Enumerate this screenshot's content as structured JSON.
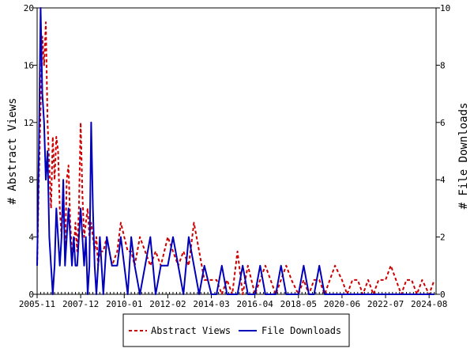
{
  "chart_data": {
    "type": "line",
    "title": "",
    "xlabel": "",
    "y_left_label": "# Abstract Views",
    "y_right_label": "# File Downloads",
    "x_ticks": [
      "2005-11",
      "2007-12",
      "2010-01",
      "2012-02",
      "2014-03",
      "2016-04",
      "2018-05",
      "2020-06",
      "2022-07",
      "2024-08"
    ],
    "x_range": [
      "2005-11",
      "2024-12"
    ],
    "y_left_ticks": [
      "0",
      "4",
      "8",
      "12",
      "16",
      "20"
    ],
    "y_left_range": [
      0,
      20
    ],
    "y_right_ticks": [
      "0",
      "2",
      "4",
      "6",
      "8",
      "10"
    ],
    "y_right_range": [
      0,
      10
    ],
    "grid": false,
    "legend_position": "bottom-center",
    "series": [
      {
        "name": "Abstract Views",
        "axis": "left",
        "color": "#cc0000",
        "style": "dashed",
        "x": [
          "2005-11",
          "2005-12",
          "2006-01",
          "2006-02",
          "2006-03",
          "2006-04",
          "2006-05",
          "2006-06",
          "2006-07",
          "2006-08",
          "2006-09",
          "2006-10",
          "2006-11",
          "2006-12",
          "2007-01",
          "2007-02",
          "2007-03",
          "2007-04",
          "2007-05",
          "2007-06",
          "2007-07",
          "2007-08",
          "2007-09",
          "2007-10",
          "2007-11",
          "2007-12",
          "2008-01",
          "2008-02",
          "2008-03",
          "2008-04",
          "2008-05",
          "2008-06",
          "2008-07",
          "2008-08",
          "2008-09",
          "2008-10",
          "2008-11",
          "2008-12",
          "2009-01",
          "2009-03",
          "2009-06",
          "2009-09",
          "2009-11",
          "2010-01",
          "2010-03",
          "2010-05",
          "2010-07",
          "2010-10",
          "2011-01",
          "2011-04",
          "2011-07",
          "2011-10",
          "2012-02",
          "2012-05",
          "2012-08",
          "2012-11",
          "2013-02",
          "2013-05",
          "2013-08",
          "2013-11",
          "2014-03",
          "2014-06",
          "2014-09",
          "2014-12",
          "2015-03",
          "2015-06",
          "2015-09",
          "2015-12",
          "2016-04",
          "2016-07",
          "2016-10",
          "2017-01",
          "2017-04",
          "2017-07",
          "2017-10",
          "2018-01",
          "2018-05",
          "2018-08",
          "2018-11",
          "2019-02",
          "2019-05",
          "2019-08",
          "2019-11",
          "2020-02",
          "2020-06",
          "2020-09",
          "2020-12",
          "2021-03",
          "2021-06",
          "2021-09",
          "2021-12",
          "2022-03",
          "2022-07",
          "2022-10",
          "2023-01",
          "2023-04",
          "2023-07",
          "2023-10",
          "2024-01",
          "2024-04",
          "2024-08",
          "2024-11"
        ],
        "values": [
          2,
          8,
          13,
          18,
          16,
          19,
          12,
          9,
          6,
          11,
          8,
          11,
          10,
          6,
          4,
          7,
          3,
          8,
          9,
          5,
          3,
          3,
          5,
          3,
          6,
          12,
          7,
          4,
          5,
          6,
          4,
          5,
          4,
          3,
          4,
          2,
          3,
          3,
          3,
          4,
          2,
          3,
          5,
          4,
          3,
          3,
          2,
          4,
          3,
          2,
          3,
          2,
          4,
          3,
          2,
          3,
          2,
          5,
          3,
          1,
          1,
          1,
          0,
          1,
          0,
          3,
          0,
          2,
          0,
          1,
          2,
          1,
          0,
          1,
          2,
          1,
          0,
          1,
          0,
          1,
          1,
          0,
          1,
          2,
          1,
          0,
          1,
          1,
          0,
          1,
          0,
          1,
          1,
          2,
          1,
          0,
          1,
          1,
          0,
          1,
          0,
          1
        ]
      },
      {
        "name": "File Downloads",
        "axis": "right",
        "color": "#0000bb",
        "style": "solid",
        "x": [
          "2005-11",
          "2005-12",
          "2006-01",
          "2006-02",
          "2006-03",
          "2006-04",
          "2006-05",
          "2006-06",
          "2006-07",
          "2006-08",
          "2006-09",
          "2006-10",
          "2006-11",
          "2006-12",
          "2007-01",
          "2007-02",
          "2007-03",
          "2007-04",
          "2007-05",
          "2007-06",
          "2007-07",
          "2007-08",
          "2007-09",
          "2007-10",
          "2007-11",
          "2007-12",
          "2008-01",
          "2008-02",
          "2008-03",
          "2008-04",
          "2008-05",
          "2008-06",
          "2008-07",
          "2008-08",
          "2008-09",
          "2008-10",
          "2008-11",
          "2008-12",
          "2009-01",
          "2009-03",
          "2009-06",
          "2009-09",
          "2009-11",
          "2010-01",
          "2010-03",
          "2010-05",
          "2010-07",
          "2010-10",
          "2011-01",
          "2011-04",
          "2011-07",
          "2011-10",
          "2012-02",
          "2012-05",
          "2012-08",
          "2012-11",
          "2013-02",
          "2013-05",
          "2013-08",
          "2013-11",
          "2014-03",
          "2014-06",
          "2014-09",
          "2014-12",
          "2015-03",
          "2015-06",
          "2015-09",
          "2015-12",
          "2016-04",
          "2016-07",
          "2016-10",
          "2017-01",
          "2017-04",
          "2017-07",
          "2017-10",
          "2018-01",
          "2018-05",
          "2018-08",
          "2018-11",
          "2019-02",
          "2019-05",
          "2019-08",
          "2019-11",
          "2020-02",
          "2020-06",
          "2020-09",
          "2020-12",
          "2021-03",
          "2021-06",
          "2021-09",
          "2021-12",
          "2022-03",
          "2022-07",
          "2022-10",
          "2023-01",
          "2023-04",
          "2023-07",
          "2023-10",
          "2024-01",
          "2024-04",
          "2024-08",
          "2024-11"
        ],
        "values": [
          1,
          5,
          10,
          7,
          6,
          4,
          5,
          2,
          1,
          0,
          1,
          3,
          2,
          1,
          2,
          4,
          1,
          2,
          3,
          2,
          1,
          2,
          1,
          1,
          2,
          3,
          2,
          1,
          2,
          0,
          1,
          6,
          3,
          1,
          0,
          1,
          2,
          1,
          0,
          2,
          1,
          1,
          2,
          1,
          0,
          2,
          1,
          0,
          1,
          2,
          0,
          1,
          1,
          2,
          1,
          0,
          2,
          1,
          0,
          1,
          0,
          0,
          1,
          0,
          0,
          0,
          1,
          0,
          0,
          1,
          0,
          0,
          0,
          1,
          0,
          0,
          0,
          1,
          0,
          0,
          1,
          0,
          0,
          0,
          0,
          0,
          0,
          0,
          0,
          0,
          0,
          0,
          0,
          0,
          0,
          0,
          0,
          0,
          0,
          0,
          0,
          0
        ]
      }
    ]
  }
}
